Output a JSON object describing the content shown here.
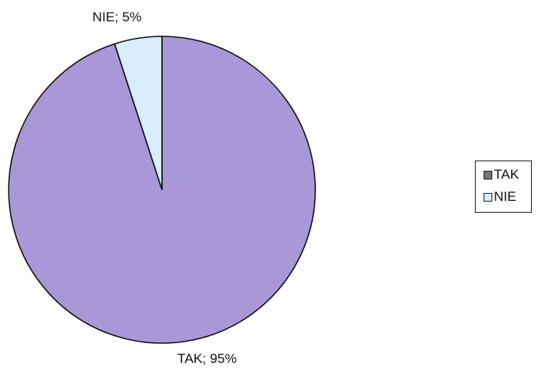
{
  "chart_data": {
    "type": "pie",
    "slices": [
      {
        "label": "TAK",
        "value": 95,
        "percent_label": "TAK; 95%",
        "color": "#a898d8",
        "legend_color": "#777777"
      },
      {
        "label": "NIE",
        "value": 5,
        "percent_label": "NIE; 5%",
        "color": "#d8ecfa",
        "legend_color": "#d8ecfa"
      }
    ],
    "legend": {
      "placement": "right",
      "entries": [
        "TAK",
        "NIE"
      ]
    },
    "title": "",
    "start_angle_deg": 0,
    "direction": "counterclockwise"
  }
}
